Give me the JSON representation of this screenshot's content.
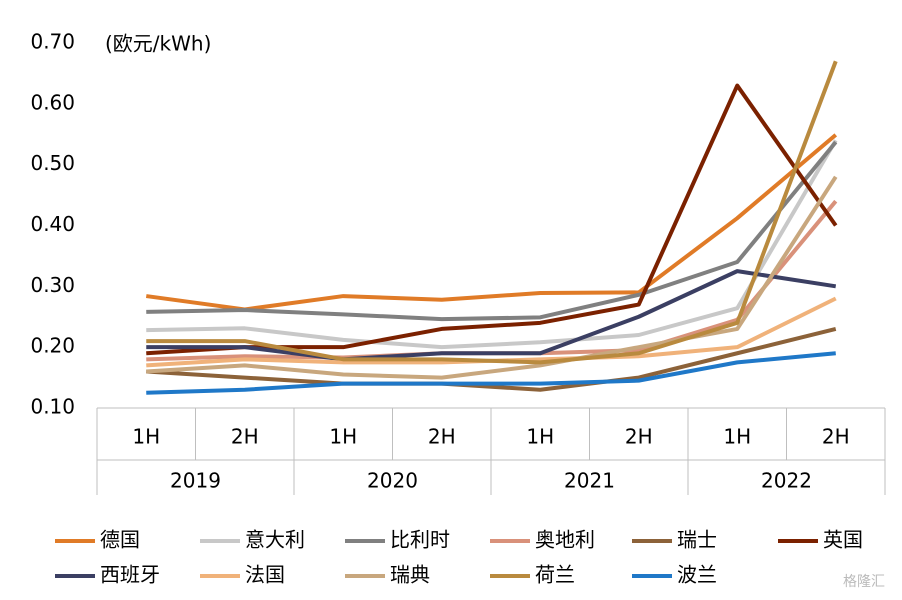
{
  "chart_data": {
    "type": "line",
    "y_label": "(欧元/kWh)",
    "categories": [
      "1H",
      "2H",
      "1H",
      "2H",
      "1H",
      "2H",
      "1H",
      "2H"
    ],
    "groups": [
      "2019",
      "2020",
      "2021",
      "2022"
    ],
    "ylim": [
      0.1,
      0.7
    ],
    "yticks": [
      {
        "value": 0.1,
        "label": "0.10"
      },
      {
        "value": 0.2,
        "label": "0.20"
      },
      {
        "value": 0.3,
        "label": "0.30"
      },
      {
        "value": 0.4,
        "label": "0.40"
      },
      {
        "value": 0.5,
        "label": "0.50"
      },
      {
        "value": 0.6,
        "label": "0.60"
      },
      {
        "value": 0.7,
        "label": "0.70"
      }
    ],
    "grid": false,
    "legend": "bottom",
    "watermark": "格隆汇",
    "series": [
      {
        "name": "德国",
        "color": "#e07b27",
        "values": [
          0.284,
          0.262,
          0.284,
          0.278,
          0.289,
          0.29,
          0.412,
          0.549
        ]
      },
      {
        "name": "意大利",
        "color": "#c8c8c8",
        "values": [
          0.228,
          0.231,
          0.212,
          0.2,
          0.208,
          0.22,
          0.264,
          0.54
        ]
      },
      {
        "name": "比利时",
        "color": "#808080",
        "values": [
          0.258,
          0.261,
          0.254,
          0.246,
          0.249,
          0.286,
          0.34,
          0.537
        ]
      },
      {
        "name": "奥地利",
        "color": "#d9917a",
        "values": [
          0.18,
          0.185,
          0.183,
          0.19,
          0.19,
          0.195,
          0.245,
          0.44
        ]
      },
      {
        "name": "瑞士",
        "color": "#8c6239",
        "values": [
          0.16,
          0.15,
          0.14,
          0.14,
          0.13,
          0.15,
          0.19,
          0.23
        ]
      },
      {
        "name": "英国",
        "color": "#7b2100",
        "values": [
          0.19,
          0.2,
          0.2,
          0.23,
          0.24,
          0.27,
          0.63,
          0.4
        ]
      },
      {
        "name": "西班牙",
        "color": "#3b3f63",
        "values": [
          0.2,
          0.2,
          0.18,
          0.19,
          0.19,
          0.25,
          0.325,
          0.3
        ]
      },
      {
        "name": "法国",
        "color": "#f0b27a",
        "values": [
          0.17,
          0.18,
          0.175,
          0.175,
          0.18,
          0.185,
          0.2,
          0.28
        ]
      },
      {
        "name": "瑞典",
        "color": "#c8a77e",
        "values": [
          0.16,
          0.17,
          0.155,
          0.15,
          0.17,
          0.2,
          0.23,
          0.48
        ]
      },
      {
        "name": "荷兰",
        "color": "#b98a3e",
        "values": [
          0.21,
          0.21,
          0.18,
          0.18,
          0.175,
          0.19,
          0.24,
          0.67
        ]
      },
      {
        "name": "波兰",
        "color": "#1f78c8",
        "values": [
          0.125,
          0.13,
          0.14,
          0.14,
          0.14,
          0.145,
          0.175,
          0.19
        ]
      }
    ]
  }
}
